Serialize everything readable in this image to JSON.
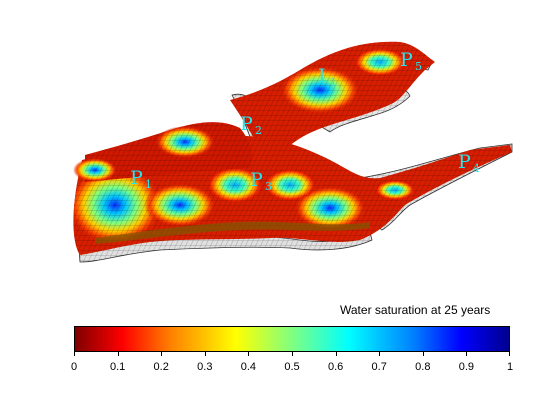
{
  "caption": "Water saturation at 25 years",
  "colorbar": {
    "min": 0,
    "max": 1,
    "tick_labels": [
      "0",
      "0.1",
      "0.2",
      "0.3",
      "0.4",
      "0.5",
      "0.6",
      "0.7",
      "0.8",
      "0.9",
      "1"
    ],
    "colormap": "jet"
  },
  "wells": [
    {
      "name": "I",
      "sub": "1"
    },
    {
      "name": "P",
      "sub": "1"
    },
    {
      "name": "P",
      "sub": "2"
    },
    {
      "name": "P",
      "sub": "3"
    },
    {
      "name": "P",
      "sub": "4"
    },
    {
      "name": "P",
      "sub": "5"
    }
  ],
  "colors": {
    "grid_line": "#000000",
    "inactive_cell": "#e8e8e8",
    "well_label": "#22e6f0"
  }
}
